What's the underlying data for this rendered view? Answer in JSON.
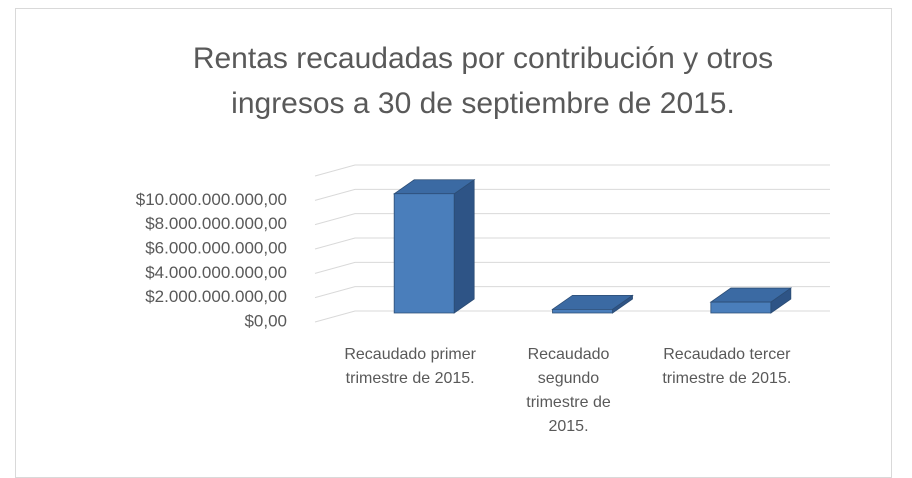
{
  "chart_data": {
    "type": "bar3d",
    "title": "Rentas recaudadas por contribución y otros ingresos a 30 de septiembre de 2015.",
    "categories": [
      "Recaudado primer trimestre de 2015.",
      "Recaudado segundo trimestre de 2015.",
      "Recaudado tercer trimestre de 2015."
    ],
    "values": [
      9800000000,
      300000000,
      900000000
    ],
    "color": "#4a7ebb",
    "ylim": [
      0,
      12000000000
    ],
    "yticks": [
      {
        "value": 0,
        "label": "$0,00"
      },
      {
        "value": 2000000000,
        "label": "$2.000.000.000,00"
      },
      {
        "value": 4000000000,
        "label": "$4.000.000.000,00"
      },
      {
        "value": 6000000000,
        "label": "$6.000.000.000,00"
      },
      {
        "value": 8000000000,
        "label": "$8.000.000.000,00"
      },
      {
        "value": 10000000000,
        "label": "$10.000.000.000,00"
      }
    ],
    "grid": true
  }
}
